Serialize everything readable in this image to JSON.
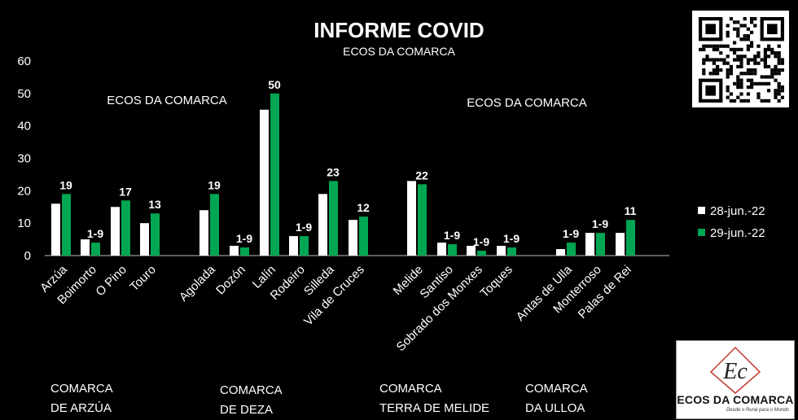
{
  "chart_data": {
    "type": "bar",
    "title": "INFORME COVID",
    "subtitle": "ECOS DA COMARCA",
    "annotations": [
      "ECOS DA COMARCA",
      "ECOS DA COMARCA"
    ],
    "ylim": [
      0,
      60
    ],
    "yticks": [
      0,
      10,
      20,
      30,
      40,
      50,
      60
    ],
    "xlabel": "",
    "ylabel": "",
    "legend_position": "right",
    "categories": [
      "Arzúa",
      "Boimorto",
      "O Pino",
      "Touro",
      "Agolada",
      "Dozón",
      "Lalín",
      "Rodeiro",
      "Silleda",
      "Vila de Cruces",
      "Melide",
      "Santiso",
      "Sobrado dos Monxes",
      "Toques",
      "Antas de Ulla",
      "Monterroso",
      "Palas de Rei"
    ],
    "groups": [
      {
        "name": "COMARCA DE ARZÚA",
        "lines": [
          "COMARCA",
          "DE ARZÚA"
        ],
        "categories": [
          "Arzúa",
          "Boimorto",
          "O Pino",
          "Touro"
        ]
      },
      {
        "name": "COMARCA DE DEZA",
        "lines": [
          "COMARCA",
          "DE DEZA"
        ],
        "categories": [
          "Agolada",
          "Dozón",
          "Lalín",
          "Rodeiro",
          "Silleda",
          "Vila de Cruces"
        ]
      },
      {
        "name": "COMARCA TERRA DE MELIDE",
        "lines": [
          "COMARCA",
          "TERRA DE MELIDE"
        ],
        "categories": [
          "Melide",
          "Santiso",
          "Sobrado dos Monxes",
          "Toques"
        ]
      },
      {
        "name": "COMARCA DA ULLOA",
        "lines": [
          "COMARCA",
          "DA ULLOA"
        ],
        "categories": [
          "Antas de Ulla",
          "Monterroso",
          "Palas de Rei"
        ]
      }
    ],
    "series": [
      {
        "name": "28-jun.-22",
        "color": "#ffffff",
        "values": [
          16,
          5,
          15,
          10,
          14,
          3,
          45,
          6,
          19,
          11,
          23,
          4,
          3,
          3,
          2,
          7,
          7
        ]
      },
      {
        "name": "29-jun.-22",
        "color": "#00a651",
        "values": [
          19,
          4,
          17,
          13,
          19,
          2.5,
          50,
          6,
          23,
          12,
          22,
          3.5,
          1.5,
          2.5,
          4,
          7,
          11
        ],
        "data_labels": [
          "19",
          "1-9",
          "17",
          "13",
          "19",
          "1-9",
          "50",
          "1-9",
          "23",
          "12",
          "22",
          "1-9",
          "1-9",
          "1-9",
          "1-9",
          "1-9",
          "11"
        ]
      }
    ]
  },
  "logo": {
    "text": "ECOS DA COMARCA",
    "tagline": "Desde o Rural para o Mundo",
    "mark": "Ec"
  }
}
